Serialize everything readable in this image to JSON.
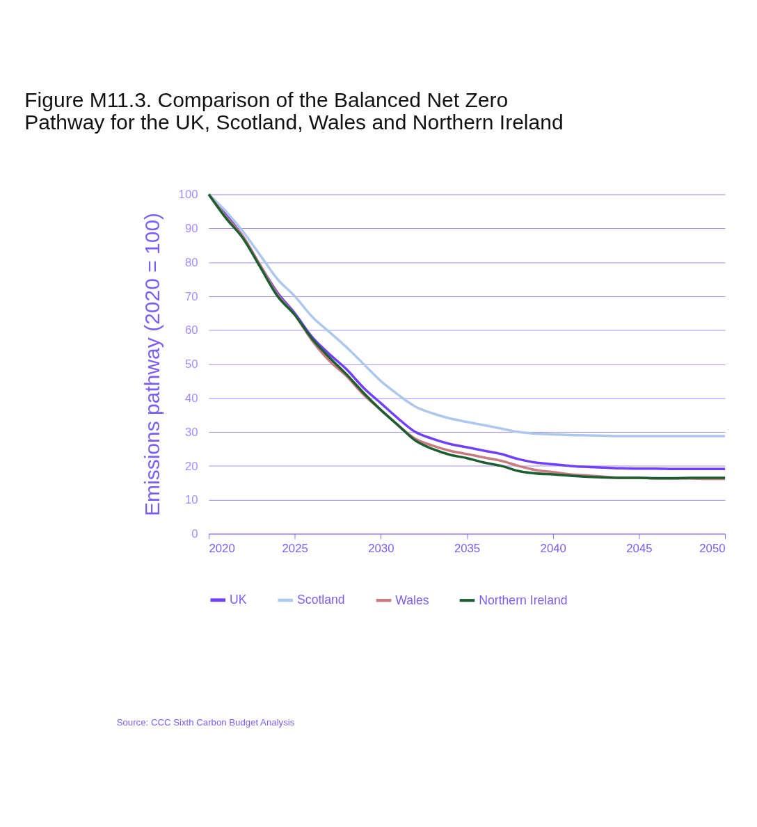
{
  "chart_data": {
    "type": "line",
    "title": "Figure M11.3. Comparison of the Balanced Net Zero\nPathway for the UK, Scotland, Wales and Northern Ireland",
    "ylabel": "Emissions pathway (2020 = 100)",
    "x": [
      2020,
      2021,
      2022,
      2023,
      2024,
      2025,
      2026,
      2027,
      2028,
      2029,
      2030,
      2031,
      2032,
      2033,
      2034,
      2035,
      2036,
      2037,
      2038,
      2039,
      2040,
      2041,
      2042,
      2043,
      2044,
      2045,
      2046,
      2047,
      2048,
      2049,
      2050
    ],
    "series": [
      {
        "name": "UK",
        "color": "#7040ff",
        "values": [
          100,
          94,
          87.5,
          79,
          71,
          65,
          58,
          53,
          48.5,
          43,
          38.5,
          34,
          30,
          28,
          26.5,
          25.5,
          24.5,
          23.5,
          22,
          21,
          20.5,
          20,
          19.7,
          19.5,
          19.3,
          19.2,
          19.2,
          19.1,
          19.1,
          19.1,
          19.1
        ]
      },
      {
        "name": "Scotland",
        "color": "#aec8ec",
        "values": [
          100,
          95,
          89,
          82,
          75,
          70,
          64,
          59.5,
          55,
          50,
          45,
          41,
          37.5,
          35.5,
          34,
          33,
          32,
          31,
          30,
          29.5,
          29.3,
          29.1,
          29,
          28.9,
          28.8,
          28.8,
          28.8,
          28.8,
          28.8,
          28.8,
          28.8
        ]
      },
      {
        "name": "Wales",
        "color": "#c97b80",
        "values": [
          100,
          93.5,
          87.5,
          79,
          70.5,
          64.5,
          57,
          51,
          46.5,
          41,
          36.5,
          32,
          28,
          26,
          24.5,
          23.5,
          22.5,
          21.5,
          20,
          18.8,
          18.2,
          17.5,
          17.2,
          16.8,
          16.5,
          16.5,
          16.3,
          16.3,
          16.3,
          16.2,
          16.2
        ]
      },
      {
        "name": "Northern Ireland",
        "color": "#1b5e30",
        "values": [
          100,
          93,
          87,
          78.5,
          70,
          64.5,
          57.5,
          52,
          47,
          41.5,
          36.5,
          32,
          27.5,
          25,
          23.3,
          22.3,
          21,
          20,
          18.5,
          17.8,
          17.5,
          17.1,
          16.8,
          16.6,
          16.5,
          16.5,
          16.4,
          16.4,
          16.5,
          16.5,
          16.5
        ]
      }
    ],
    "xlim": [
      2020,
      2050
    ],
    "xticks": [
      2020,
      2025,
      2030,
      2035,
      2040,
      2045,
      2050
    ],
    "ylim": [
      0,
      100
    ],
    "yticks": [
      0,
      10,
      20,
      30,
      40,
      50,
      60,
      70,
      80,
      90,
      100
    ],
    "grid": "y",
    "legend": "bottom",
    "marker": "none",
    "line_style": "solid",
    "annotations": [
      "Source: CCC Sixth Carbon Budget Analysis"
    ]
  }
}
